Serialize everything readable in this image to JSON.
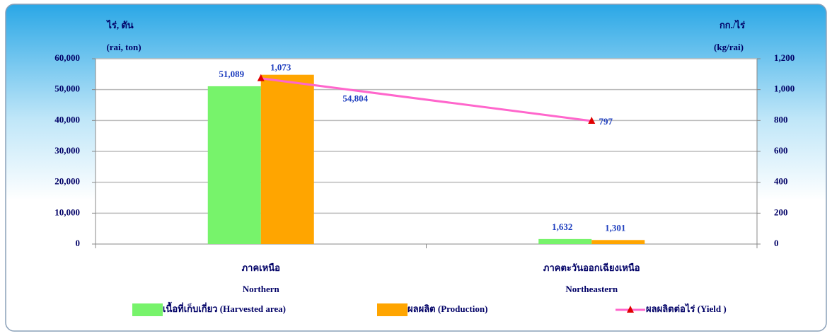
{
  "chart_data": {
    "type": "bar",
    "y_label": [
      "ไร่, ตัน",
      "(rai, ton)"
    ],
    "y2_label": [
      "กก./ไร่",
      "(kg/rai)"
    ],
    "categories": [
      [
        "ภาคเหนือ",
        "Northern"
      ],
      [
        "ภาคตะวันออกเฉียงเหนือ",
        "Northeastern"
      ]
    ],
    "series": [
      {
        "name": "เนื้อที่เก็บเกี่ยว  (Harvested area)",
        "type": "bar",
        "color": "#77f36b",
        "values": [
          51089,
          1632
        ],
        "value_labels": [
          "51,089",
          "1,632"
        ]
      },
      {
        "name": "ผลผลิต (Production)",
        "type": "bar",
        "color": "#ffa500",
        "values": [
          54804,
          1301
        ],
        "value_labels": [
          "54,804",
          "1,301"
        ]
      },
      {
        "name": "ผลผลิตต่อไร่  (Yield )",
        "type": "line",
        "axis": "y2",
        "color": "#ff66cc",
        "marker_color": "#e00000",
        "values": [
          1073,
          797
        ],
        "value_labels": [
          "1,073",
          "797"
        ]
      }
    ],
    "ylim": [
      0,
      60000
    ],
    "yticks": [
      0,
      {
        "value": 10000,
        "label": "10,000"
      },
      {
        "value": 20000,
        "label": "20,000"
      },
      {
        "value": 30000,
        "label": "30,000"
      },
      {
        "value": 40000,
        "label": "40,000"
      },
      {
        "value": 50000,
        "label": "50,000"
      },
      {
        "value": 60000,
        "label": "60,000"
      }
    ],
    "y2lim": [
      0,
      1200
    ],
    "y2ticks": [
      0,
      200,
      400,
      600,
      800,
      {
        "value": 1000,
        "label": "1,000"
      },
      {
        "value": 1200,
        "label": "1,200"
      }
    ],
    "grid": true
  }
}
